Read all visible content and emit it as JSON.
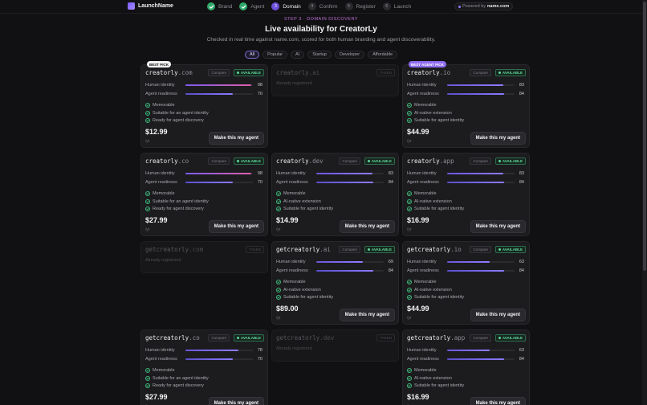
{
  "app": {
    "name": "LaunchName"
  },
  "steps": [
    {
      "num": "",
      "label": "Brand",
      "state": "done"
    },
    {
      "num": "",
      "label": "Agent",
      "state": "done"
    },
    {
      "num": "3",
      "label": "Domain",
      "state": "current"
    },
    {
      "num": "4",
      "label": "Confirm",
      "state": "todo"
    },
    {
      "num": "5",
      "label": "Register",
      "state": "todo"
    },
    {
      "num": "6",
      "label": "Launch",
      "state": "todo"
    }
  ],
  "powered": {
    "prefix": "Powered by",
    "brand": "name.com"
  },
  "header": {
    "eyebrow": "STEP 3 · DOMAIN DISCOVERY",
    "title": "Live availability for CreatorLy",
    "subtitle": "Checked in real time against name.com, scored for both human branding and agent discoverability."
  },
  "filters": [
    {
      "label": "All",
      "active": true
    },
    {
      "label": "Popular",
      "active": false
    },
    {
      "label": "AI",
      "active": false
    },
    {
      "label": "Startup",
      "active": false
    },
    {
      "label": "Developer",
      "active": false
    },
    {
      "label": "Affordable",
      "active": false
    }
  ],
  "labels": {
    "compare": "Compare",
    "available": "AVAILABLE",
    "taken": "TAKEN",
    "already_registered": "Already registered",
    "human_identity": "Human identity",
    "agent_readiness": "Agent readiness",
    "make_agent": "Make this my agent",
    "per_year": "/yr"
  },
  "domains": [
    {
      "base": "creatorly",
      "tld": ".com",
      "status": "available",
      "badge": "BEST PICK",
      "badge_type": "best",
      "human": 98,
      "agent": 70,
      "human_style": "hi",
      "features": [
        "Memorable",
        "Suitable for an agent identity",
        "Ready for agent discovery"
      ],
      "price": "$12.99"
    },
    {
      "base": "creatorly",
      "tld": ".ai",
      "status": "taken"
    },
    {
      "base": "creatorly",
      "tld": ".io",
      "status": "available",
      "badge": "BEST AGENT PICK",
      "badge_type": "agent",
      "human": 83,
      "agent": 84,
      "human_style": "lo",
      "features": [
        "Memorable",
        "AI-native extension",
        "Suitable for agent identity"
      ],
      "price": "$44.99"
    },
    {
      "base": "creatorly",
      "tld": ".co",
      "status": "available",
      "human": 98,
      "agent": 70,
      "human_style": "hi",
      "features": [
        "Memorable",
        "Suitable for an agent identity",
        "Ready for agent discovery"
      ],
      "price": "$27.99"
    },
    {
      "base": "creatorly",
      "tld": ".dev",
      "status": "available",
      "human": 83,
      "agent": 84,
      "human_style": "lo",
      "features": [
        "Memorable",
        "AI-native extension",
        "Suitable for agent identity"
      ],
      "price": "$14.99"
    },
    {
      "base": "creatorly",
      "tld": ".app",
      "status": "available",
      "human": 83,
      "agent": 84,
      "human_style": "lo",
      "features": [
        "Memorable",
        "AI-native extension",
        "Suitable for agent identity"
      ],
      "price": "$16.99"
    },
    {
      "base": "getcreatorly",
      "tld": ".com",
      "status": "taken"
    },
    {
      "base": "getcreatorly",
      "tld": ".ai",
      "status": "available",
      "human": 69,
      "agent": 84,
      "human_style": "lo",
      "features": [
        "Memorable",
        "AI-native extension",
        "Suitable for agent identity"
      ],
      "price": "$89.00"
    },
    {
      "base": "getcreatorly",
      "tld": ".io",
      "status": "available",
      "human": 63,
      "agent": 84,
      "human_style": "lo",
      "features": [
        "Memorable",
        "AI-native extension",
        "Suitable for agent identity"
      ],
      "price": "$44.99"
    },
    {
      "base": "getcreatorly",
      "tld": ".co",
      "status": "available",
      "human": 78,
      "agent": 70,
      "human_style": "lo",
      "features": [
        "Memorable",
        "Suitable for an agent identity",
        "Ready for agent discovery"
      ],
      "price": "$27.99"
    },
    {
      "base": "getcreatorly",
      "tld": ".dev",
      "status": "taken"
    },
    {
      "base": "getcreatorly",
      "tld": ".app",
      "status": "available",
      "human": 63,
      "agent": 84,
      "human_style": "lo",
      "features": [
        "Memorable",
        "AI-native extension",
        "Suitable for agent identity"
      ],
      "price": "$16.99"
    }
  ]
}
